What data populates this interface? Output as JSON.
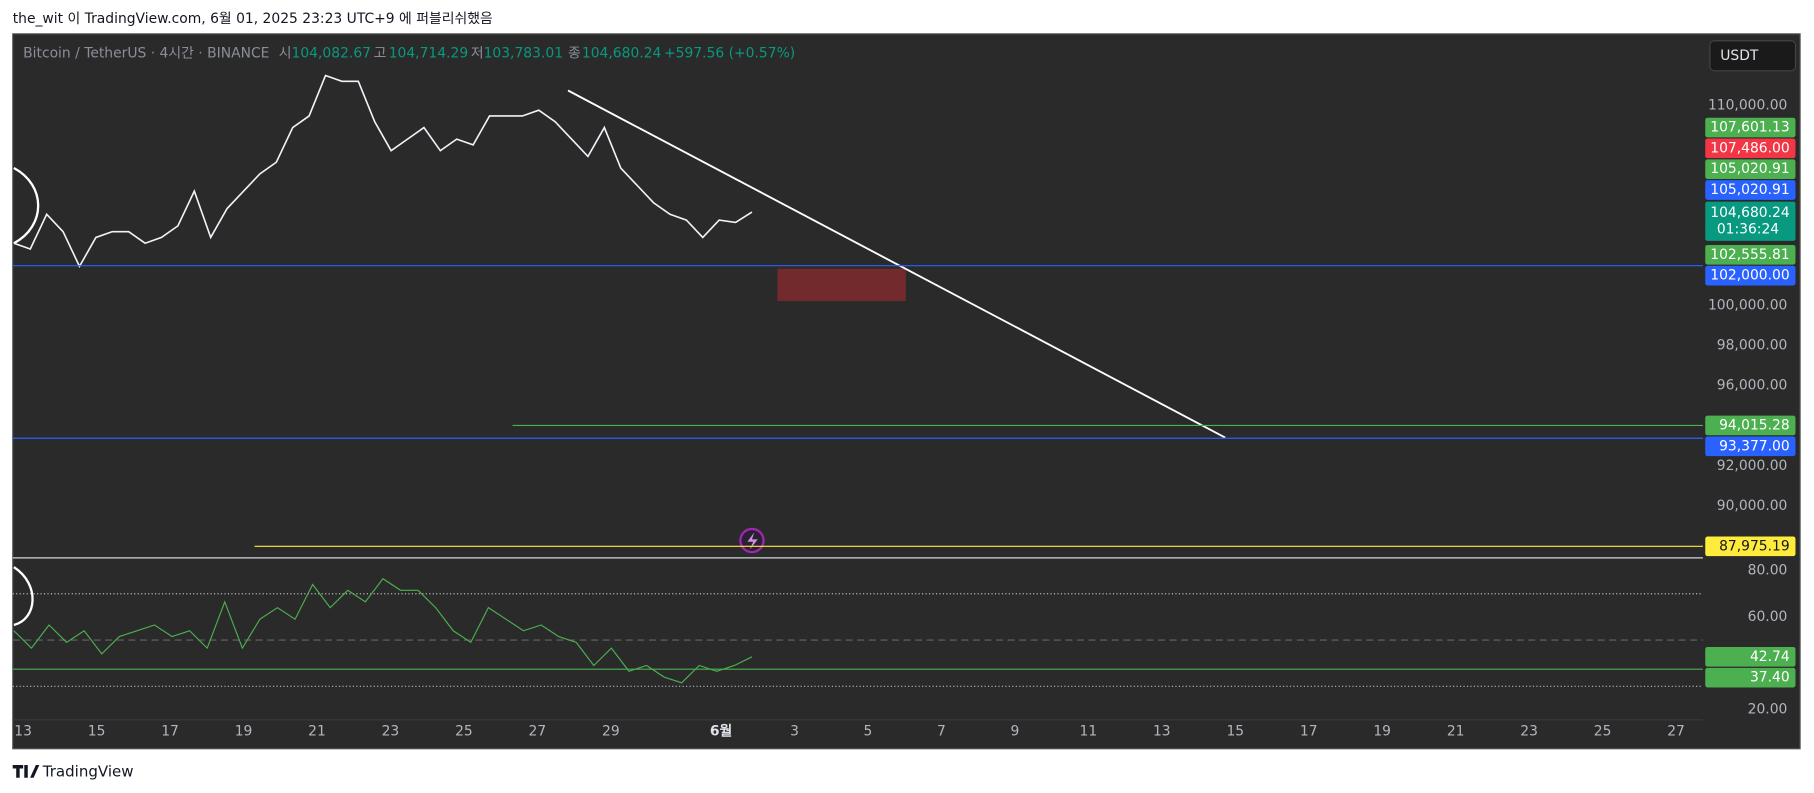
{
  "header": {
    "text": "the_wit 이 TradingView.com, 6월 01, 2025 23:23 UTC+9 에 퍼블리쉬했음"
  },
  "chart_data": {
    "type": "line",
    "symbol": "Bitcoin / TetherUS · 4시간 · BINANCE",
    "ohlc": [
      {
        "label": "시",
        "value": "104,082.67"
      },
      {
        "label": "고",
        "value": "104,714.29"
      },
      {
        "label": "저",
        "value": "103,783.01"
      },
      {
        "label": "종",
        "value": "104,680.24"
      }
    ],
    "change": "+597.56 (+0.57%)",
    "currency": "USDT",
    "color": "#f0f3fa",
    "values": [
      103121,
      102832,
      104566,
      103699,
      101965,
      103410,
      103699,
      103699,
      103121,
      103410,
      103988,
      105722,
      103410,
      104855,
      105722,
      106589,
      107167,
      108901,
      109479,
      111502,
      111213,
      111213,
      109190,
      107745,
      108323,
      108901,
      107745,
      108323,
      108034,
      109479,
      109479,
      109479,
      109768,
      109190,
      108323,
      107456,
      108901,
      106878,
      106011,
      105144,
      104566,
      104277,
      103410,
      104277,
      104162,
      104680.24
    ],
    "ylim": [
      87399,
      113526
    ],
    "yticks": [
      {
        "value": 90000,
        "label": "90,000.00"
      },
      {
        "value": 92000,
        "label": "92,000.00"
      },
      {
        "value": 96000,
        "label": "96,000.00"
      },
      {
        "value": 98000,
        "label": "98,000.00"
      },
      {
        "value": 100000,
        "label": "100,000.00"
      },
      {
        "value": 110000,
        "label": "110,000.00"
      }
    ],
    "x_labels": [
      "13",
      "15",
      "17",
      "19",
      "21",
      "23",
      "25",
      "27",
      "29",
      "6월",
      "3",
      "5",
      "7",
      "9",
      "11",
      "13",
      "15",
      "17",
      "19",
      "21",
      "23",
      "25",
      "27"
    ],
    "price_labels": [
      {
        "value": 107601.13,
        "label": "107,601.13",
        "color": "#4caf50"
      },
      {
        "value": 107486.0,
        "label": "107,486.00",
        "color": "#f23645"
      },
      {
        "value": 105020.91,
        "label": "105,020.91",
        "color": "#4caf50"
      },
      {
        "value": 105020.91,
        "label": "105,020.91",
        "color": "#2962ff"
      },
      {
        "value": 104680.24,
        "label": "104,680.24",
        "countdown": "01:36:24",
        "color": "#089981"
      },
      {
        "value": 102555.81,
        "label": "102,555.81",
        "color": "#4caf50"
      }
    ],
    "levels": [
      {
        "value": 102000.0,
        "label": "102,000.00",
        "color": "#2962ff"
      },
      {
        "value": 94015.28,
        "label": "94,015.28",
        "color": "#4caf50"
      },
      {
        "value": 93377.0,
        "label": "93,377.00",
        "color": "#2962ff"
      },
      {
        "value": 87975.19,
        "label": "87,975.19",
        "color": "#ffeb3b"
      }
    ],
    "rsi": {
      "color": "#4caf50",
      "values": [
        54,
        46.5,
        56.5,
        49,
        54,
        44,
        51.5,
        54,
        56.5,
        51.5,
        54,
        46.5,
        66.5,
        46.5,
        59,
        64,
        59,
        74,
        64,
        71.5,
        66.5,
        76.5,
        71.5,
        71.5,
        64,
        54,
        49,
        64,
        59,
        54,
        56.5,
        51.5,
        49,
        39,
        46.5,
        36.5,
        39,
        34,
        31.5,
        39,
        36.5,
        39,
        42.74
      ],
      "ylim": [
        16.5,
        85.5
      ],
      "yticks": [
        {
          "value": 80,
          "label": "80.00"
        },
        {
          "value": 60,
          "label": "60.00"
        },
        {
          "value": 20,
          "label": "20.00"
        }
      ],
      "guides": [
        70,
        50,
        30
      ],
      "price_labels": [
        {
          "value": 42.74,
          "label": "42.74",
          "color": "#4caf50"
        }
      ],
      "levels": [
        {
          "value": 37.4,
          "label": "37.40",
          "color": "#4caf50"
        }
      ]
    }
  },
  "footer": {
    "text": "TradingView"
  }
}
